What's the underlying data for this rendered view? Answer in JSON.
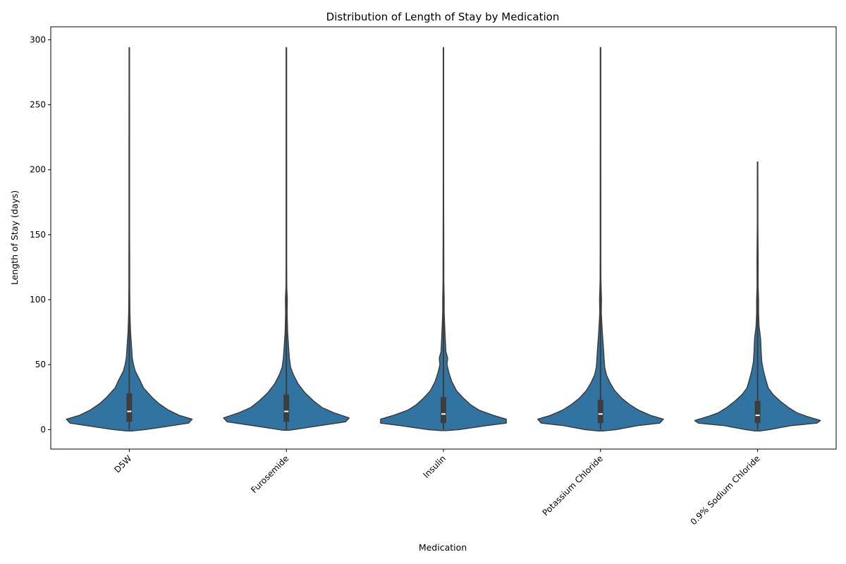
{
  "chart_data": {
    "type": "violin",
    "title": "Distribution of Length of Stay by Medication",
    "xlabel": "Medication",
    "ylabel": "Length of Stay (days)",
    "ylim": [
      -15,
      310
    ],
    "yticks": [
      0,
      50,
      100,
      150,
      200,
      250,
      300
    ],
    "color": "#3274a1",
    "edge_color": "#3d3d3d",
    "categories": [
      "D5W",
      "Furosemide",
      "Insulin",
      "Potassium Chloride",
      "0.9% Sodium Chloride"
    ],
    "series": [
      {
        "category": "D5W",
        "min": 0,
        "q1": 6,
        "median": 14,
        "q3": 28,
        "whisker_high": 52,
        "max": 294,
        "density": [
          [
            -1,
            0.02
          ],
          [
            0,
            0.13
          ],
          [
            2,
            0.28
          ],
          [
            5,
            0.5
          ],
          [
            8,
            0.53
          ],
          [
            11,
            0.42
          ],
          [
            15,
            0.33
          ],
          [
            20,
            0.25
          ],
          [
            25,
            0.19
          ],
          [
            32,
            0.12
          ],
          [
            38,
            0.09
          ],
          [
            45,
            0.05
          ],
          [
            50,
            0.035
          ],
          [
            55,
            0.025
          ],
          [
            65,
            0.018
          ],
          [
            75,
            0.01
          ],
          [
            90,
            0.005
          ],
          [
            110,
            0.003
          ],
          [
            130,
            0.003
          ],
          [
            155,
            0.002
          ],
          [
            180,
            0.0015
          ],
          [
            220,
            0.0015
          ],
          [
            260,
            0.0012
          ],
          [
            294,
            0.0012
          ]
        ]
      },
      {
        "category": "Furosemide",
        "min": 0,
        "q1": 6,
        "median": 14,
        "q3": 27,
        "whisker_high": 50,
        "max": 294,
        "density": [
          [
            -0.5,
            0.02
          ],
          [
            0,
            0.06
          ],
          [
            3,
            0.28
          ],
          [
            6,
            0.5
          ],
          [
            9,
            0.53
          ],
          [
            13,
            0.4
          ],
          [
            17,
            0.3
          ],
          [
            22,
            0.23
          ],
          [
            28,
            0.16
          ],
          [
            35,
            0.1
          ],
          [
            42,
            0.06
          ],
          [
            48,
            0.035
          ],
          [
            55,
            0.025
          ],
          [
            65,
            0.017
          ],
          [
            75,
            0.01
          ],
          [
            90,
            0.006
          ],
          [
            100,
            0.008
          ],
          [
            110,
            0.003
          ],
          [
            130,
            0.002
          ],
          [
            160,
            0.0015
          ],
          [
            200,
            0.0015
          ],
          [
            250,
            0.0012
          ],
          [
            294,
            0.0012
          ]
        ]
      },
      {
        "category": "Insulin",
        "min": 0,
        "q1": 5,
        "median": 12,
        "q3": 25,
        "whisker_high": 46,
        "max": 294,
        "density": [
          [
            -0.8,
            0.02
          ],
          [
            0,
            0.13
          ],
          [
            3,
            0.36
          ],
          [
            5,
            0.53
          ],
          [
            8,
            0.53
          ],
          [
            11,
            0.42
          ],
          [
            15,
            0.3
          ],
          [
            19,
            0.23
          ],
          [
            24,
            0.17
          ],
          [
            30,
            0.11
          ],
          [
            37,
            0.07
          ],
          [
            44,
            0.045
          ],
          [
            50,
            0.03
          ],
          [
            55,
            0.035
          ],
          [
            60,
            0.02
          ],
          [
            70,
            0.015
          ],
          [
            80,
            0.01
          ],
          [
            90,
            0.006
          ],
          [
            100,
            0.006
          ],
          [
            115,
            0.003
          ],
          [
            130,
            0.003
          ],
          [
            170,
            0.0015
          ],
          [
            230,
            0.0012
          ],
          [
            294,
            0.0012
          ]
        ]
      },
      {
        "category": "Potassium Chloride",
        "min": 0,
        "q1": 5,
        "median": 12,
        "q3": 23,
        "whisker_high": 45,
        "max": 294,
        "density": [
          [
            -1,
            0.02
          ],
          [
            0,
            0.13
          ],
          [
            3,
            0.31
          ],
          [
            5,
            0.5
          ],
          [
            8,
            0.53
          ],
          [
            11,
            0.42
          ],
          [
            15,
            0.32
          ],
          [
            19,
            0.25
          ],
          [
            24,
            0.18
          ],
          [
            30,
            0.12
          ],
          [
            36,
            0.08
          ],
          [
            42,
            0.05
          ],
          [
            48,
            0.035
          ],
          [
            55,
            0.03
          ],
          [
            62,
            0.025
          ],
          [
            75,
            0.015
          ],
          [
            90,
            0.006
          ],
          [
            100,
            0.008
          ],
          [
            115,
            0.003
          ],
          [
            140,
            0.002
          ],
          [
            180,
            0.0015
          ],
          [
            230,
            0.0012
          ],
          [
            294,
            0.0012
          ]
        ]
      },
      {
        "category": "0.9% Sodium Chloride",
        "min": 0,
        "q1": 5,
        "median": 11,
        "q3": 22,
        "whisker_high": 42,
        "max": 206,
        "density": [
          [
            -1,
            0.02
          ],
          [
            0,
            0.1
          ],
          [
            3,
            0.28
          ],
          [
            5,
            0.5
          ],
          [
            7,
            0.53
          ],
          [
            10,
            0.42
          ],
          [
            13,
            0.33
          ],
          [
            17,
            0.26
          ],
          [
            22,
            0.19
          ],
          [
            27,
            0.13
          ],
          [
            32,
            0.09
          ],
          [
            38,
            0.07
          ],
          [
            45,
            0.05
          ],
          [
            52,
            0.035
          ],
          [
            60,
            0.03
          ],
          [
            70,
            0.025
          ],
          [
            80,
            0.012
          ],
          [
            90,
            0.008
          ],
          [
            100,
            0.008
          ],
          [
            110,
            0.004
          ],
          [
            130,
            0.005
          ],
          [
            160,
            0.002
          ],
          [
            185,
            0.0015
          ],
          [
            206,
            0.0012
          ]
        ]
      }
    ],
    "grid": false,
    "legend": "none"
  }
}
